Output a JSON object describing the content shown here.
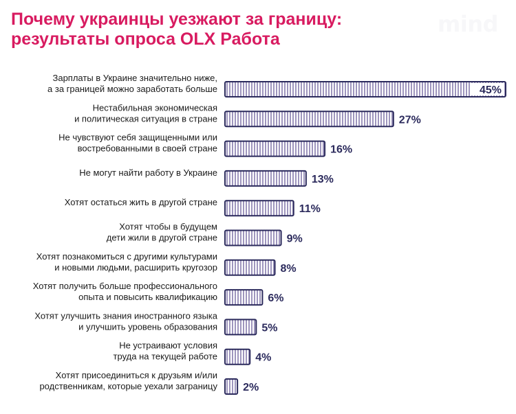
{
  "title": {
    "line1": "Почему украинцы уезжают за границу:",
    "line2": "результаты опроса OLX Работа"
  },
  "brand": "mind",
  "colors": {
    "title": "#d81b60",
    "bar_fill": "#9e95bd",
    "bar_stroke": "#2b2a5c",
    "value_text": "#2b2a5c",
    "label_text": "#1a1a1a",
    "brand": "#f3f3f5"
  },
  "chart_data": {
    "type": "bar",
    "orientation": "horizontal",
    "categories": [
      [
        "Зарплаты в Украине значительно ниже,",
        "а за границей можно заработать больше"
      ],
      [
        "Нестабильная экономическая",
        "и политическая ситуация в стране"
      ],
      [
        "Не чувствуют себя защищенными или",
        "востребованными в своей стране"
      ],
      [
        "Не могут найти работу в Украине"
      ],
      [
        "Хотят остаться жить в другой стране"
      ],
      [
        "Хотят чтобы в будущем",
        "дети жили в другой стране"
      ],
      [
        "Хотят познакомиться с другими культурами",
        "и новыми людьми, расширить кругозор"
      ],
      [
        "Хотят получить больше профессионального",
        "опыта и повысить квалификацию"
      ],
      [
        "Хотят улучшить знания иностранного языка",
        "и улучшить уровень образования"
      ],
      [
        "Не устраивают условия",
        "труда на текущей работе"
      ],
      [
        "Хотят присоединиться к друзьям и/или",
        "родственникам, которые уехали заграницу"
      ]
    ],
    "values": [
      45,
      27,
      16,
      13,
      11,
      9,
      8,
      6,
      5,
      4,
      2
    ],
    "value_labels": [
      "45%",
      "27%",
      "16%",
      "13%",
      "11%",
      "9%",
      "8%",
      "6%",
      "5%",
      "4%",
      "2%"
    ],
    "xlim": [
      0,
      45
    ],
    "grid": false,
    "legend": "none"
  }
}
